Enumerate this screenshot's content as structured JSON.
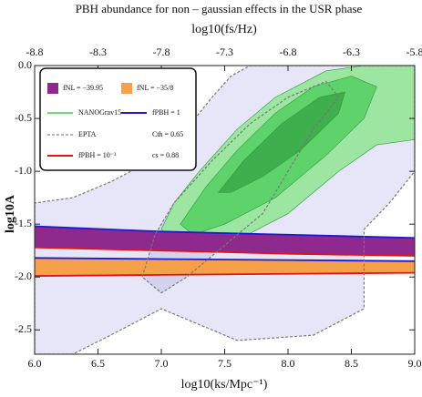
{
  "chart_data": {
    "type": "contour-band",
    "title": "PBH abundance for non – gaussian effects in the USR phase",
    "x_label": "log10(ks/Mpc⁻¹)",
    "x2_label": "log10(fs/Hz)",
    "y_label": "log10A",
    "xlim": [
      6,
      9
    ],
    "xticks": [
      {
        "value": 6,
        "label": "6.0"
      },
      6.5,
      {
        "value": 7,
        "label": "7.0"
      },
      7.5,
      {
        "value": 8,
        "label": "8.0"
      },
      8.5,
      {
        "value": 9,
        "label": "9.0"
      }
    ],
    "x2lim": [
      -8.8,
      -5.8
    ],
    "x2ticks": [
      -8.8,
      -8.3,
      -7.8,
      -7.3,
      -6.8,
      -6.3,
      -5.8
    ],
    "ylim": [
      -2.73,
      0
    ],
    "yticks": [
      {
        "value": 0,
        "label": "0.0"
      },
      -0.5,
      {
        "value": -1,
        "label": "-1.0"
      },
      -1.5,
      {
        "value": -2,
        "label": "-2.0"
      },
      -2.5
    ],
    "x": [
      6,
      7,
      8,
      9
    ],
    "lines": [
      {
        "name": "fPBH = 1",
        "color": "#1a1ad6",
        "values": [
          [
            -1.52,
            -1.57,
            -1.6,
            -1.63
          ],
          [
            -1.82,
            -1.83,
            -1.84,
            -1.85
          ]
        ]
      },
      {
        "name": "fPBH = 10⁻³",
        "color": "#e01515",
        "values": [
          [
            -1.72,
            -1.75,
            -1.78,
            -1.8
          ],
          [
            -1.99,
            -1.98,
            -1.97,
            -1.96
          ]
        ]
      }
    ],
    "bands": [
      {
        "name": "fNL = −39.95",
        "color": "#8e2a8e"
      },
      {
        "name": "fNL = −35/8",
        "color": "#f7a04a"
      }
    ],
    "regions": [
      {
        "name": "EPTA",
        "color": "#9a9ad8",
        "dashed": true,
        "levels": [
          {
            "color": "#e6e6f8",
            "x": [
              6.0,
              6.0,
              6.3,
              6.6,
              7.0,
              7.2,
              7.4,
              7.55,
              7.7,
              9.0,
              9.0,
              8.8,
              8.6,
              8.6,
              8.2,
              7.6,
              7.0,
              6.6,
              6.3
            ],
            "y": [
              -2.73,
              -1.3,
              -1.25,
              -1.1,
              -0.85,
              -0.6,
              -0.3,
              -0.1,
              0,
              0,
              -1.0,
              -1.3,
              -1.55,
              -2.3,
              -2.55,
              -2.6,
              -2.3,
              -2.55,
              -2.73
            ]
          },
          {
            "color": "#d3d3f0",
            "x": [
              6.85,
              6.95,
              7.1,
              7.4,
              7.7,
              8.0,
              8.3,
              8.4,
              8.2,
              8.0,
              7.8,
              7.5,
              7.2,
              7.0
            ],
            "y": [
              -2.0,
              -1.6,
              -1.3,
              -0.9,
              -0.55,
              -0.3,
              -0.15,
              -0.3,
              -0.6,
              -1.0,
              -1.4,
              -1.7,
              -2.0,
              -2.15
            ]
          }
        ]
      },
      {
        "name": "NANOGrav15",
        "color": "#3ccf4a",
        "dashed": false,
        "levels": [
          {
            "color": "#9ce6a2",
            "x": [
              7.0,
              7.1,
              7.3,
              7.6,
              7.9,
              8.3,
              8.6,
              9.0,
              9.0,
              8.7,
              8.4,
              8.0,
              7.6,
              7.2
            ],
            "y": [
              -1.55,
              -1.3,
              -1.0,
              -0.6,
              -0.3,
              -0.05,
              0,
              0,
              -0.7,
              -0.75,
              -1.0,
              -1.4,
              -1.65,
              -1.75
            ]
          },
          {
            "color": "#5fd36b",
            "x": [
              7.15,
              7.35,
              7.6,
              7.9,
              8.2,
              8.5,
              8.7,
              8.6,
              8.3,
              7.9,
              7.5,
              7.25
            ],
            "y": [
              -1.5,
              -1.15,
              -0.8,
              -0.45,
              -0.2,
              -0.1,
              -0.2,
              -0.5,
              -0.85,
              -1.25,
              -1.5,
              -1.6
            ]
          },
          {
            "color": "#3fae4d",
            "x": [
              7.45,
              7.65,
              7.95,
              8.25,
              8.45,
              8.4,
              8.1,
              7.8,
              7.55
            ],
            "y": [
              -1.2,
              -0.9,
              -0.55,
              -0.3,
              -0.25,
              -0.45,
              -0.8,
              -1.05,
              -1.2
            ]
          }
        ]
      }
    ],
    "annotations": [
      "Cth = 0.65",
      "cs = 0.88"
    ]
  }
}
